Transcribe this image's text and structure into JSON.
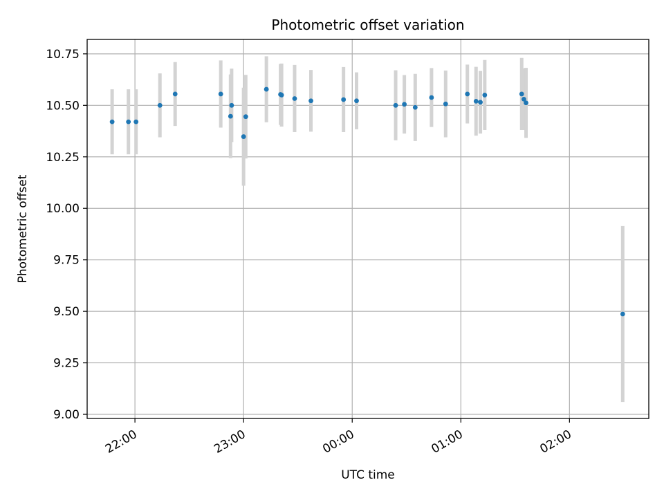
{
  "chart_data": {
    "type": "scatter",
    "title": "Photometric offset variation",
    "xlabel": "UTC time",
    "ylabel": "Photometric offset",
    "x_unit": "UTC time (hours, counted past 00:00 of the first night)",
    "xlim": [
      -2.44,
      2.73
    ],
    "ylim": [
      8.98,
      10.82
    ],
    "x_ticks": [
      {
        "value": -2,
        "label": "22:00"
      },
      {
        "value": -1,
        "label": "23:00"
      },
      {
        "value": 0,
        "label": "00:00"
      },
      {
        "value": 1,
        "label": "01:00"
      },
      {
        "value": 2,
        "label": "02:00"
      }
    ],
    "y_ticks": [
      {
        "value": 9.0,
        "label": "9.00"
      },
      {
        "value": 9.25,
        "label": "9.25"
      },
      {
        "value": 9.5,
        "label": "9.50"
      },
      {
        "value": 9.75,
        "label": "9.75"
      },
      {
        "value": 10.0,
        "label": "10.00"
      },
      {
        "value": 10.25,
        "label": "10.25"
      },
      {
        "value": 10.5,
        "label": "10.50"
      },
      {
        "value": 10.75,
        "label": "10.75"
      }
    ],
    "grid": true,
    "point_color": "#1f77b4",
    "errorbar_color": "#d3d3d3",
    "points": [
      {
        "x": -2.21,
        "y": 10.42,
        "err": 0.158
      },
      {
        "x": -2.06,
        "y": 10.42,
        "err": 0.158
      },
      {
        "x": -1.99,
        "y": 10.42,
        "err": 0.158
      },
      {
        "x": -1.77,
        "y": 10.5,
        "err": 0.155
      },
      {
        "x": -1.63,
        "y": 10.555,
        "err": 0.155
      },
      {
        "x": -1.21,
        "y": 10.555,
        "err": 0.163
      },
      {
        "x": -1.12,
        "y": 10.447,
        "err": 0.203
      },
      {
        "x": -1.11,
        "y": 10.5,
        "err": 0.178
      },
      {
        "x": -1.0,
        "y": 10.348,
        "err": 0.238
      },
      {
        "x": -0.98,
        "y": 10.445,
        "err": 0.203
      },
      {
        "x": -0.79,
        "y": 10.578,
        "err": 0.16
      },
      {
        "x": -0.66,
        "y": 10.553,
        "err": 0.148
      },
      {
        "x": -0.65,
        "y": 10.55,
        "err": 0.153
      },
      {
        "x": -0.53,
        "y": 10.533,
        "err": 0.163
      },
      {
        "x": -0.38,
        "y": 10.522,
        "err": 0.15
      },
      {
        "x": -0.08,
        "y": 10.528,
        "err": 0.158
      },
      {
        "x": 0.04,
        "y": 10.522,
        "err": 0.138
      },
      {
        "x": 0.4,
        "y": 10.5,
        "err": 0.17
      },
      {
        "x": 0.48,
        "y": 10.505,
        "err": 0.142
      },
      {
        "x": 0.58,
        "y": 10.49,
        "err": 0.163
      },
      {
        "x": 0.73,
        "y": 10.538,
        "err": 0.143
      },
      {
        "x": 0.86,
        "y": 10.507,
        "err": 0.162
      },
      {
        "x": 1.06,
        "y": 10.555,
        "err": 0.143
      },
      {
        "x": 1.14,
        "y": 10.52,
        "err": 0.167
      },
      {
        "x": 1.18,
        "y": 10.515,
        "err": 0.152
      },
      {
        "x": 1.22,
        "y": 10.55,
        "err": 0.17
      },
      {
        "x": 1.56,
        "y": 10.555,
        "err": 0.175
      },
      {
        "x": 1.58,
        "y": 10.53,
        "err": 0.15
      },
      {
        "x": 1.6,
        "y": 10.512,
        "err": 0.17
      },
      {
        "x": 2.49,
        "y": 9.487,
        "err": 0.427
      }
    ]
  }
}
